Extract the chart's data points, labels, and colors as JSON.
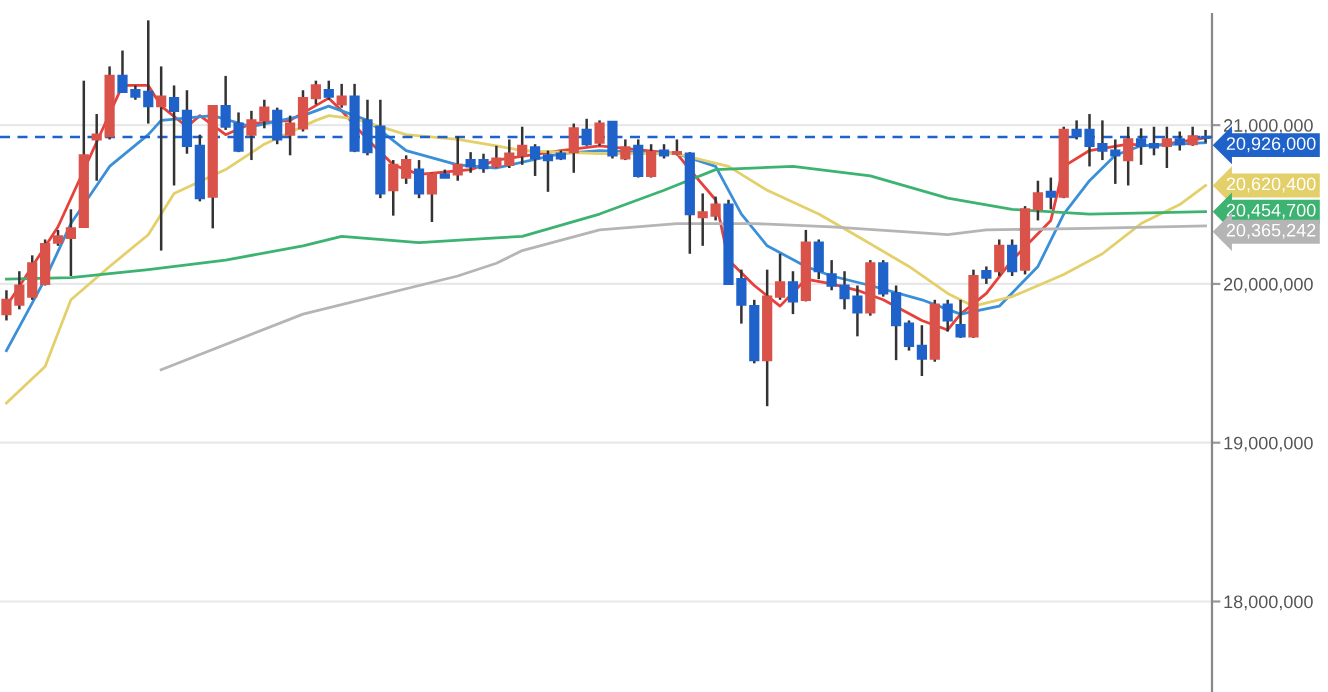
{
  "chart_data": {
    "type": "candlestick",
    "categories": [
      null,
      null,
      null,
      null,
      null,
      null,
      null,
      null,
      null,
      null,
      null,
      null,
      null,
      null,
      null,
      null,
      null,
      null,
      null,
      null,
      null,
      null,
      null,
      null,
      null,
      null,
      null,
      null,
      null,
      null,
      null,
      null,
      null,
      null,
      null,
      null,
      null,
      null,
      null,
      null,
      null,
      null,
      null,
      null,
      null,
      null,
      null,
      null,
      null,
      null,
      null,
      null,
      null,
      null,
      null,
      null,
      null,
      null,
      null,
      null,
      null,
      null,
      null,
      null,
      null,
      null,
      null,
      null,
      null,
      null,
      null,
      null,
      null,
      null,
      null,
      null,
      null,
      null,
      null,
      null,
      null,
      null,
      null,
      null,
      null,
      null,
      null,
      null,
      null,
      null,
      null,
      null,
      null,
      null
    ],
    "ohlc": [
      [
        19810000,
        19960000,
        19770000,
        19900000
      ],
      [
        19870000,
        20080000,
        19840000,
        19990000
      ],
      [
        19920000,
        20180000,
        19900000,
        20130000
      ],
      [
        20000000,
        20280000,
        19990000,
        20250000
      ],
      [
        20260000,
        20340000,
        20240000,
        20300000
      ],
      [
        20290000,
        20470000,
        20050000,
        20350000
      ],
      [
        20360000,
        21280000,
        20360000,
        20810000
      ],
      [
        20910000,
        21070000,
        20650000,
        20940000
      ],
      [
        20930000,
        21370000,
        20910000,
        21310000
      ],
      [
        21310000,
        21470000,
        21210000,
        21210000
      ],
      [
        21220000,
        21250000,
        21160000,
        21180000
      ],
      [
        21210000,
        21660000,
        21010000,
        21120000
      ],
      [
        21120000,
        21370000,
        20210000,
        21180000
      ],
      [
        21170000,
        21250000,
        20620000,
        21090000
      ],
      [
        21090000,
        21220000,
        20820000,
        20870000
      ],
      [
        20870000,
        20940000,
        20520000,
        20540000
      ],
      [
        20550000,
        21120000,
        20350000,
        21120000
      ],
      [
        21120000,
        21310000,
        20970000,
        20990000
      ],
      [
        21010000,
        21080000,
        20830000,
        20840000
      ],
      [
        20940000,
        21090000,
        20780000,
        21030000
      ],
      [
        21030000,
        21160000,
        20980000,
        21110000
      ],
      [
        21090000,
        21110000,
        20880000,
        20910000
      ],
      [
        20940000,
        21060000,
        20810000,
        21010000
      ],
      [
        20980000,
        21220000,
        20960000,
        21170000
      ],
      [
        21170000,
        21280000,
        21130000,
        21250000
      ],
      [
        21220000,
        21280000,
        21160000,
        21180000
      ],
      [
        21130000,
        21260000,
        21110000,
        21180000
      ],
      [
        21180000,
        21260000,
        20830000,
        20840000
      ],
      [
        21030000,
        21160000,
        20810000,
        20830000
      ],
      [
        20990000,
        21160000,
        20540000,
        20570000
      ],
      [
        20590000,
        20780000,
        20430000,
        20750000
      ],
      [
        20670000,
        20810000,
        20630000,
        20780000
      ],
      [
        20720000,
        20780000,
        20540000,
        20570000
      ],
      [
        20570000,
        20700000,
        20390000,
        20690000
      ],
      [
        20690000,
        20720000,
        20670000,
        20670000
      ],
      [
        20690000,
        20930000,
        20650000,
        20750000
      ],
      [
        20780000,
        20830000,
        20700000,
        20740000
      ],
      [
        20780000,
        20820000,
        20700000,
        20730000
      ],
      [
        20740000,
        20870000,
        20730000,
        20790000
      ],
      [
        20750000,
        20910000,
        20730000,
        20820000
      ],
      [
        20810000,
        20990000,
        20750000,
        20870000
      ],
      [
        20860000,
        20880000,
        20680000,
        20790000
      ],
      [
        20810000,
        20840000,
        20580000,
        20780000
      ],
      [
        20820000,
        20840000,
        20780000,
        20790000
      ],
      [
        20830000,
        21010000,
        20700000,
        20980000
      ],
      [
        20970000,
        21040000,
        20870000,
        20880000
      ],
      [
        20890000,
        21030000,
        20870000,
        21010000
      ],
      [
        21020000,
        21020000,
        20790000,
        20810000
      ],
      [
        20790000,
        20910000,
        20780000,
        20860000
      ],
      [
        20870000,
        20910000,
        20670000,
        20680000
      ],
      [
        20680000,
        20880000,
        20670000,
        20830000
      ],
      [
        20840000,
        20880000,
        20790000,
        20810000
      ],
      [
        20820000,
        20910000,
        20810000,
        20830000
      ],
      [
        20820000,
        20830000,
        20190000,
        20440000
      ],
      [
        20420000,
        20570000,
        20240000,
        20450000
      ],
      [
        20430000,
        20550000,
        20400000,
        20500000
      ],
      [
        20500000,
        20530000,
        20000000,
        20000000
      ],
      [
        20030000,
        20090000,
        19750000,
        19870000
      ],
      [
        19860000,
        19900000,
        19500000,
        19520000
      ],
      [
        19520000,
        20090000,
        19230000,
        19920000
      ],
      [
        19920000,
        20190000,
        19900000,
        20010000
      ],
      [
        20010000,
        20080000,
        19810000,
        19890000
      ],
      [
        19900000,
        20340000,
        19890000,
        20260000
      ],
      [
        20260000,
        20280000,
        20030000,
        20080000
      ],
      [
        20060000,
        20150000,
        19960000,
        19990000
      ],
      [
        19990000,
        20080000,
        19840000,
        19910000
      ],
      [
        19920000,
        19990000,
        19670000,
        19820000
      ],
      [
        19820000,
        20150000,
        19800000,
        20130000
      ],
      [
        20130000,
        20150000,
        19920000,
        19940000
      ],
      [
        19940000,
        19990000,
        19520000,
        19740000
      ],
      [
        19750000,
        19770000,
        19580000,
        19610000
      ],
      [
        19610000,
        19740000,
        19420000,
        19530000
      ],
      [
        19530000,
        19900000,
        19510000,
        19870000
      ],
      [
        19870000,
        19900000,
        19700000,
        19770000
      ],
      [
        19740000,
        19900000,
        19660000,
        19670000
      ],
      [
        19670000,
        20090000,
        19660000,
        20050000
      ],
      [
        20080000,
        20110000,
        20000000,
        20040000
      ],
      [
        20080000,
        20280000,
        20050000,
        20240000
      ],
      [
        20240000,
        20280000,
        20050000,
        20080000
      ],
      [
        20090000,
        20490000,
        20060000,
        20470000
      ],
      [
        20470000,
        20650000,
        20400000,
        20570000
      ],
      [
        20580000,
        20670000,
        20470000,
        20550000
      ],
      [
        20550000,
        20990000,
        20540000,
        20970000
      ],
      [
        20970000,
        21030000,
        20910000,
        20930000
      ],
      [
        20970000,
        21070000,
        20740000,
        20870000
      ],
      [
        20880000,
        21030000,
        20780000,
        20840000
      ],
      [
        20840000,
        20910000,
        20630000,
        20810000
      ],
      [
        20780000,
        20990000,
        20620000,
        20910000
      ],
      [
        20910000,
        20980000,
        20750000,
        20870000
      ],
      [
        20880000,
        20990000,
        20810000,
        20860000
      ],
      [
        20870000,
        20990000,
        20730000,
        20910000
      ],
      [
        20910000,
        20960000,
        20840000,
        20880000
      ],
      [
        20880000,
        20990000,
        20870000,
        20930000
      ],
      [
        20920000,
        20970000,
        20890000,
        20926000
      ]
    ],
    "colors": [
      "#d9534a",
      "#d9534a",
      "#d9534a",
      "#d9534a",
      "#d9534a",
      "#d9534a",
      "#d9534a",
      "#d9534a",
      "#d9534a",
      "#1f62c9",
      "#1f62c9",
      "#1f62c9",
      "#d9534a",
      "#1f62c9",
      "#1f62c9",
      "#1f62c9",
      "#d9534a",
      "#1f62c9",
      "#1f62c9",
      "#d9534a",
      "#d9534a",
      "#1f62c9",
      "#d9534a",
      "#d9534a",
      "#d9534a",
      "#1f62c9",
      "#d9534a",
      "#1f62c9",
      "#1f62c9",
      "#1f62c9",
      "#d9534a",
      "#d9534a",
      "#1f62c9",
      "#d9534a",
      "#1f62c9",
      "#d9534a",
      "#1f62c9",
      "#1f62c9",
      "#d9534a",
      "#d9534a",
      "#d9534a",
      "#1f62c9",
      "#1f62c9",
      "#1f62c9",
      "#d9534a",
      "#1f62c9",
      "#d9534a",
      "#1f62c9",
      "#d9534a",
      "#1f62c9",
      "#d9534a",
      "#1f62c9",
      "#d9534a",
      "#1f62c9",
      "#d9534a",
      "#d9534a",
      "#1f62c9",
      "#1f62c9",
      "#1f62c9",
      "#d9534a",
      "#d9534a",
      "#1f62c9",
      "#d9534a",
      "#1f62c9",
      "#1f62c9",
      "#1f62c9",
      "#1f62c9",
      "#d9534a",
      "#1f62c9",
      "#1f62c9",
      "#1f62c9",
      "#1f62c9",
      "#d9534a",
      "#1f62c9",
      "#1f62c9",
      "#d9534a",
      "#1f62c9",
      "#d9534a",
      "#1f62c9",
      "#d9534a",
      "#d9534a",
      "#1f62c9",
      "#d9534a",
      "#1f62c9",
      "#1f62c9",
      "#1f62c9",
      "#1f62c9",
      "#d9534a",
      "#1f62c9",
      "#1f62c9",
      "#d9534a",
      "#1f62c9",
      "#d9534a",
      "#1f62c9"
    ],
    "series": [
      {
        "type": "line",
        "color": "#e8403a",
        "values": [
          19860000,
          null,
          null,
          null,
          20360000,
          null,
          null,
          null,
          null,
          21250000,
          null,
          21250000,
          21120000,
          null,
          20990000,
          21060000,
          null,
          20940000,
          null,
          21010000,
          null,
          null,
          21030000,
          null,
          null,
          21170000,
          21090000,
          null,
          20910000,
          null,
          20750000,
          null,
          20690000,
          null,
          null,
          null,
          20720000,
          null,
          20780000,
          null,
          null,
          null,
          null,
          20840000,
          null,
          null,
          20870000,
          null,
          null,
          null,
          null,
          null,
          20820000,
          20720000,
          null,
          20530000,
          20150000,
          null,
          19990000,
          null,
          19860000,
          null,
          20030000,
          null,
          20000000,
          null,
          19960000,
          null,
          19900000,
          null,
          null,
          19770000,
          null,
          19710000,
          19810000,
          null,
          19940000,
          null,
          20150000,
          null,
          null,
          20400000,
          20740000,
          null,
          20840000,
          null,
          null,
          20880000,
          null,
          20870000,
          null,
          null,
          null,
          20920000
        ]
      },
      {
        "type": "line",
        "color": "#3a8fd8",
        "values": [
          19580000,
          null,
          null,
          20030000,
          null,
          20380000,
          null,
          null,
          20740000,
          null,
          null,
          20940000,
          21030000,
          null,
          null,
          null,
          21060000,
          null,
          null,
          20990000,
          null,
          null,
          null,
          21060000,
          null,
          21120000,
          null,
          null,
          21030000,
          null,
          null,
          20840000,
          null,
          null,
          null,
          20750000,
          null,
          null,
          20730000,
          null,
          null,
          null,
          null,
          20820000,
          null,
          null,
          20840000,
          null,
          null,
          null,
          null,
          null,
          20820000,
          null,
          null,
          20740000,
          null,
          20440000,
          null,
          20240000,
          null,
          null,
          20110000,
          null,
          20050000,
          null,
          null,
          19990000,
          null,
          null,
          null,
          19900000,
          null,
          19840000,
          19810000,
          null,
          null,
          19860000,
          null,
          null,
          20110000,
          null,
          20440000,
          null,
          20650000,
          null,
          20810000,
          null,
          20870000,
          null,
          null,
          null,
          null,
          20890000
        ]
      },
      {
        "type": "line",
        "color": "#e3d06a",
        "values": [
          19250000,
          null,
          null,
          19480000,
          null,
          19900000,
          null,
          null,
          20110000,
          null,
          null,
          20310000,
          null,
          20570000,
          null,
          null,
          null,
          20720000,
          null,
          null,
          20880000,
          null,
          null,
          null,
          21030000,
          21060000,
          null,
          21040000,
          null,
          null,
          null,
          20940000,
          null,
          null,
          null,
          20910000,
          null,
          null,
          20870000,
          null,
          20840000,
          null,
          null,
          null,
          null,
          null,
          20820000,
          null,
          null,
          null,
          null,
          null,
          20820000,
          null,
          null,
          null,
          20740000,
          null,
          null,
          20590000,
          null,
          null,
          null,
          20440000,
          null,
          null,
          20300000,
          null,
          null,
          null,
          20110000,
          null,
          null,
          19940000,
          null,
          19860000,
          null,
          null,
          19920000,
          null,
          null,
          null,
          20060000,
          null,
          null,
          20190000,
          null,
          null,
          20380000,
          null,
          null,
          20500000,
          null,
          20620400
        ],
        "value_labels": [
          null,
          null,
          null,
          null,
          null,
          null,
          null,
          null,
          null,
          null,
          null,
          null,
          null,
          null,
          null,
          null,
          null,
          null,
          null,
          null,
          null,
          null,
          null,
          null,
          null,
          null,
          null,
          null,
          null,
          null,
          null,
          null,
          null,
          null,
          null,
          null,
          null,
          null,
          null,
          null,
          null,
          null,
          null,
          null,
          null,
          null,
          null,
          null,
          null,
          null,
          null,
          null,
          null,
          null,
          null,
          null,
          null,
          null,
          null,
          null,
          null,
          null,
          null,
          null,
          null,
          null,
          null,
          null,
          null,
          null,
          null,
          null,
          null,
          null,
          null,
          null,
          null,
          null,
          null,
          null,
          null,
          null,
          null,
          null,
          null,
          null,
          null,
          null,
          null,
          null,
          null,
          null,
          null,
          "20,620,400"
        ]
      },
      {
        "type": "line",
        "color": "#3cb371",
        "values": [
          20030000,
          null,
          null,
          null,
          null,
          20040000,
          null,
          null,
          null,
          null,
          null,
          20090000,
          null,
          null,
          null,
          null,
          null,
          20150000,
          null,
          null,
          null,
          null,
          null,
          20240000,
          null,
          null,
          20300000,
          null,
          null,
          null,
          null,
          null,
          20260000,
          null,
          null,
          null,
          null,
          null,
          20290000,
          null,
          20300000,
          null,
          null,
          null,
          null,
          null,
          20440000,
          null,
          null,
          null,
          null,
          20590000,
          null,
          null,
          null,
          20720000,
          null,
          null,
          null,
          null,
          null,
          20740000,
          null,
          null,
          null,
          null,
          null,
          20680000,
          null,
          null,
          null,
          null,
          null,
          20540000,
          null,
          null,
          null,
          null,
          20470000,
          null,
          null,
          null,
          null,
          null,
          20440000,
          null,
          null,
          null,
          null,
          null,
          null,
          null,
          null,
          20454700
        ],
        "value_labels": [
          null,
          null,
          null,
          null,
          null,
          null,
          null,
          null,
          null,
          null,
          null,
          null,
          null,
          null,
          null,
          null,
          null,
          null,
          null,
          null,
          null,
          null,
          null,
          null,
          null,
          null,
          null,
          null,
          null,
          null,
          null,
          null,
          null,
          null,
          null,
          null,
          null,
          null,
          null,
          null,
          null,
          null,
          null,
          null,
          null,
          null,
          null,
          null,
          null,
          null,
          null,
          null,
          null,
          null,
          null,
          null,
          null,
          null,
          null,
          null,
          null,
          null,
          null,
          null,
          null,
          null,
          null,
          null,
          null,
          null,
          null,
          null,
          null,
          null,
          null,
          null,
          null,
          null,
          null,
          null,
          null,
          null,
          null,
          null,
          null,
          null,
          null,
          null,
          null,
          null,
          null,
          null,
          null,
          "20,454,700"
        ]
      },
      {
        "type": "line",
        "color": "#b5b5b5",
        "values": [
          null,
          null,
          null,
          null,
          null,
          null,
          null,
          null,
          null,
          null,
          null,
          null,
          19460000,
          null,
          null,
          null,
          null,
          null,
          null,
          null,
          null,
          null,
          null,
          19810000,
          null,
          null,
          null,
          null,
          null,
          null,
          null,
          null,
          null,
          null,
          null,
          20050000,
          null,
          null,
          20130000,
          null,
          20210000,
          null,
          null,
          null,
          null,
          null,
          20340000,
          null,
          null,
          null,
          null,
          null,
          20380000,
          null,
          null,
          null,
          null,
          null,
          20380000,
          null,
          null,
          null,
          null,
          null,
          20360000,
          null,
          null,
          null,
          null,
          null,
          null,
          null,
          null,
          20310000,
          null,
          null,
          20340000,
          null,
          null,
          null,
          null,
          null,
          null,
          null,
          20350000,
          null,
          null,
          null,
          null,
          null,
          null,
          null,
          null,
          20365242
        ],
        "value_labels": [
          null,
          null,
          null,
          null,
          null,
          null,
          null,
          null,
          null,
          null,
          null,
          null,
          null,
          null,
          null,
          null,
          null,
          null,
          null,
          null,
          null,
          null,
          null,
          null,
          null,
          null,
          null,
          null,
          null,
          null,
          null,
          null,
          null,
          null,
          null,
          null,
          null,
          null,
          null,
          null,
          null,
          null,
          null,
          null,
          null,
          null,
          null,
          null,
          null,
          null,
          null,
          null,
          null,
          null,
          null,
          null,
          null,
          null,
          null,
          null,
          null,
          null,
          null,
          null,
          null,
          null,
          null,
          null,
          null,
          null,
          null,
          null,
          null,
          null,
          null,
          null,
          null,
          null,
          null,
          null,
          null,
          null,
          null,
          null,
          null,
          null,
          null,
          null,
          null,
          null,
          null,
          null,
          null,
          "20,365,242"
        ]
      }
    ],
    "ref_lines": [
      {
        "axis": "y",
        "value": 20926000,
        "label": "20,926,000",
        "color": "#1f62c9",
        "line_style": "dashed"
      }
    ],
    "ylim": [
      17430000,
      21700000
    ],
    "yticks": [
      {
        "value": 18000000,
        "label": "18,000,000"
      },
      {
        "value": 19000000,
        "label": "19,000,000"
      },
      {
        "value": 20000000,
        "label": "20,000,000"
      },
      {
        "value": 21000000,
        "label": "21,000,000"
      }
    ],
    "tick_labels": "y",
    "grid": "y"
  }
}
